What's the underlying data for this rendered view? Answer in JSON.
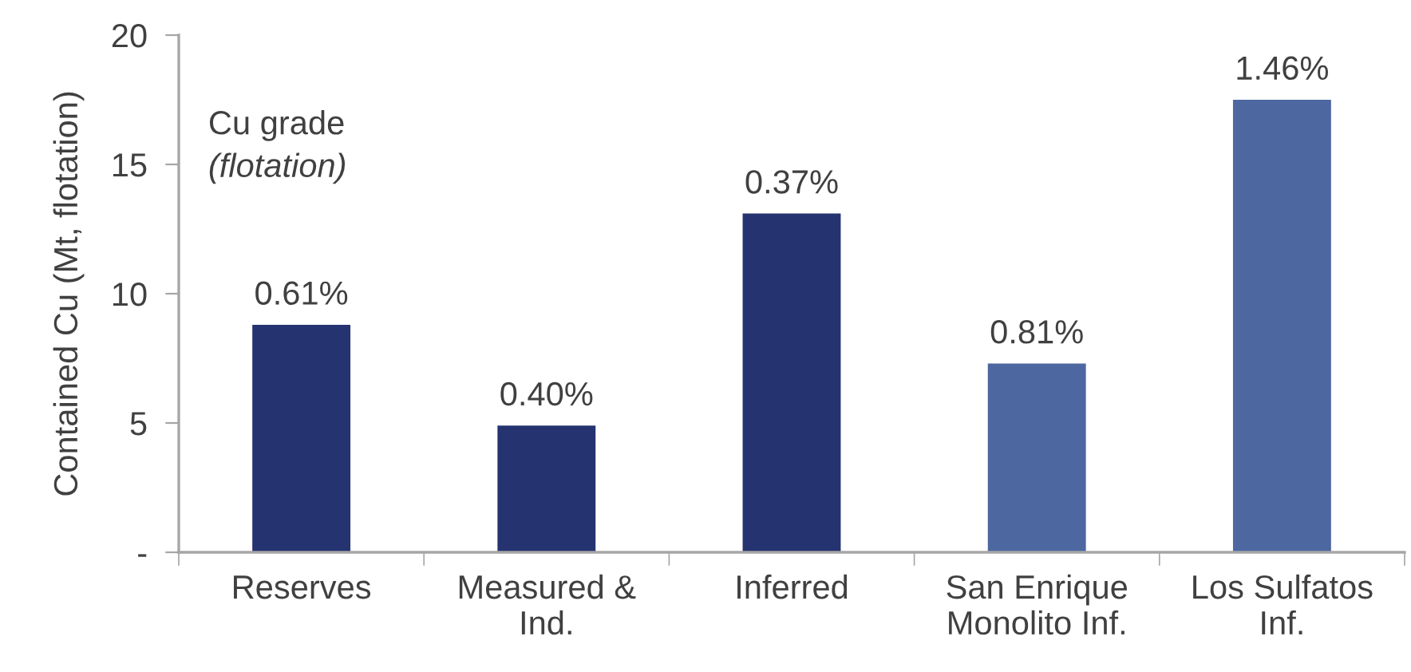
{
  "chart_data": {
    "type": "bar",
    "ylabel": "Contained Cu (Mt, flotation)",
    "categories": [
      "Reserves",
      "Measured &\nInd.",
      "Inferred",
      "San Enrique\nMonolito Inf.",
      "Los Sulfatos\nInf."
    ],
    "values": [
      8.8,
      4.9,
      13.1,
      7.3,
      17.5
    ],
    "colors": [
      "#253370",
      "#253370",
      "#253370",
      "#4d67a0",
      "#4d67a0"
    ],
    "annotations": [
      "Cu grade",
      "(flotation)",
      {
        "text": "0.61%",
        "x": "Reserves",
        "y": 8.8
      },
      {
        "text": "0.40%",
        "x": "Measured &\nInd.",
        "y": 4.9
      },
      {
        "text": "0.37%",
        "x": "Inferred",
        "y": 13.1
      },
      {
        "text": "0.81%",
        "x": "San Enrique\nMonolito Inf.",
        "y": 7.3
      },
      {
        "text": "1.46%",
        "x": "Los Sulfatos\nInf.",
        "y": 17.5
      }
    ],
    "ylim": [
      0,
      20
    ],
    "yticks": [
      {
        "value": 0,
        "label": "-"
      },
      5,
      10,
      15,
      20
    ],
    "grid": false,
    "legend": false
  }
}
